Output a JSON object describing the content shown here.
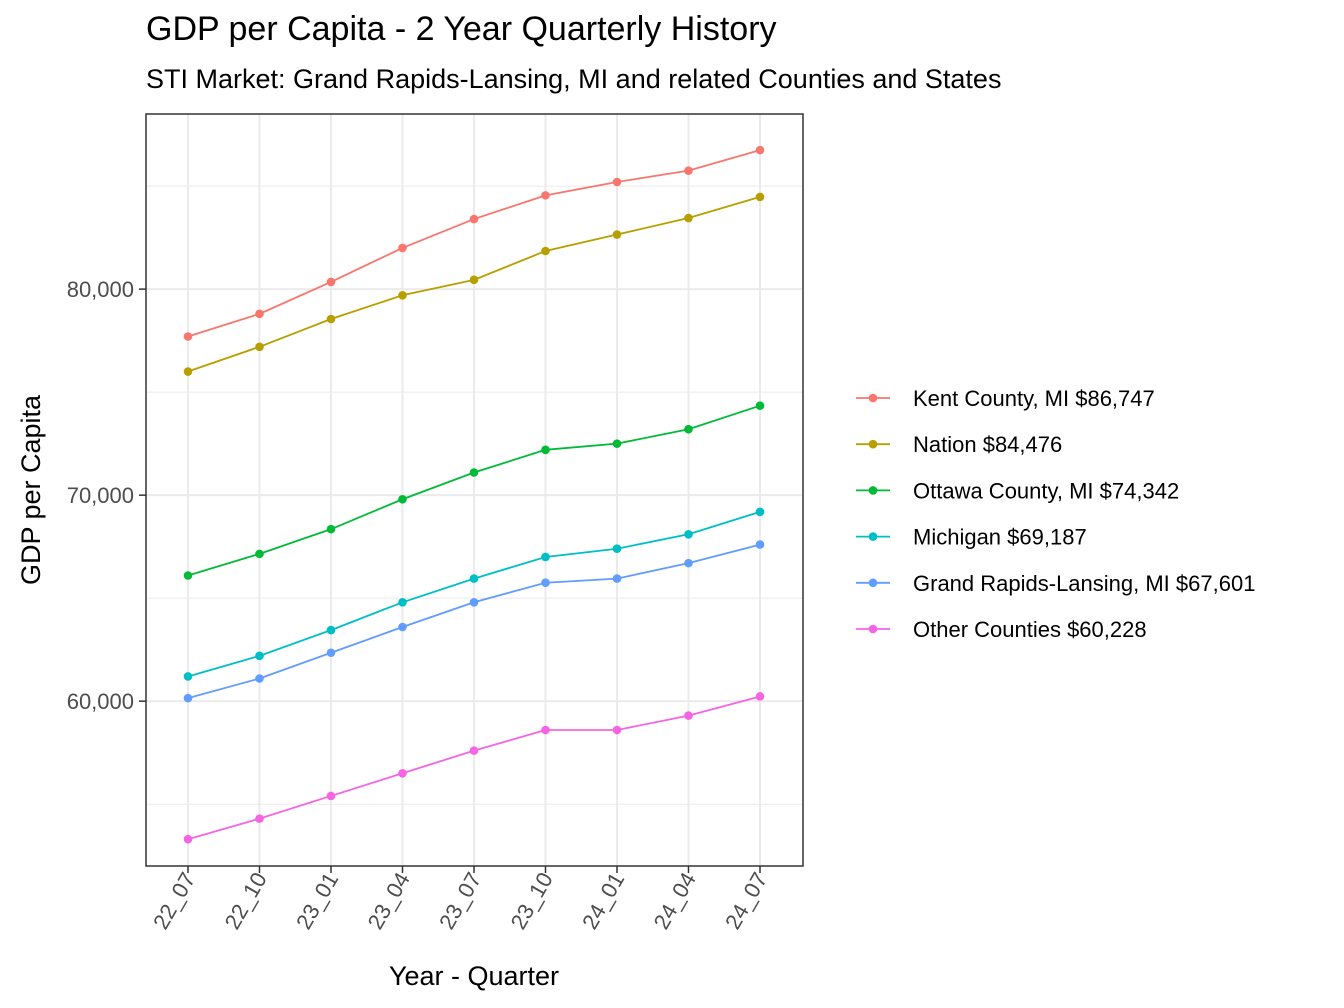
{
  "chart_data": {
    "type": "line",
    "title": "GDP per Capita - 2 Year Quarterly History",
    "subtitle": "STI Market: Grand Rapids-Lansing, MI and related Counties and States",
    "xlabel": "Year - Quarter",
    "ylabel": "GDP per Capita",
    "categories": [
      "22_07",
      "22_10",
      "23_01",
      "23_04",
      "23_07",
      "23_10",
      "24_01",
      "24_04",
      "24_07"
    ],
    "ylim": [
      52000,
      88500
    ],
    "yticks": [
      60000,
      70000,
      80000
    ],
    "ytick_labels": [
      "60,000",
      "70,000",
      "80,000"
    ],
    "grid": true,
    "legend_position": "right",
    "series": [
      {
        "name": "Kent County, MI $86,747",
        "color": "#F8766D",
        "values": [
          77700,
          78800,
          80350,
          82000,
          83400,
          84550,
          85200,
          85750,
          86747
        ]
      },
      {
        "name": "Nation $84,476",
        "color": "#B79F00",
        "values": [
          76000,
          77200,
          78550,
          79700,
          80450,
          81850,
          82650,
          83450,
          84476
        ]
      },
      {
        "name": "Ottawa County, MI $74,342",
        "color": "#00BA38",
        "values": [
          66100,
          67150,
          68350,
          69800,
          71100,
          72200,
          72500,
          73200,
          74342
        ]
      },
      {
        "name": "Michigan $69,187",
        "color": "#00BFC4",
        "values": [
          61200,
          62200,
          63450,
          64800,
          65950,
          67000,
          67400,
          68100,
          69187
        ]
      },
      {
        "name": "Grand Rapids-Lansing, MI $67,601",
        "color": "#619CFF",
        "values": [
          60150,
          61100,
          62350,
          63600,
          64800,
          65750,
          65950,
          66700,
          67601
        ]
      },
      {
        "name": "Other Counties $60,228",
        "color": "#F564E3",
        "values": [
          53300,
          54300,
          55400,
          56500,
          57600,
          58600,
          58600,
          59300,
          60228
        ]
      }
    ]
  }
}
